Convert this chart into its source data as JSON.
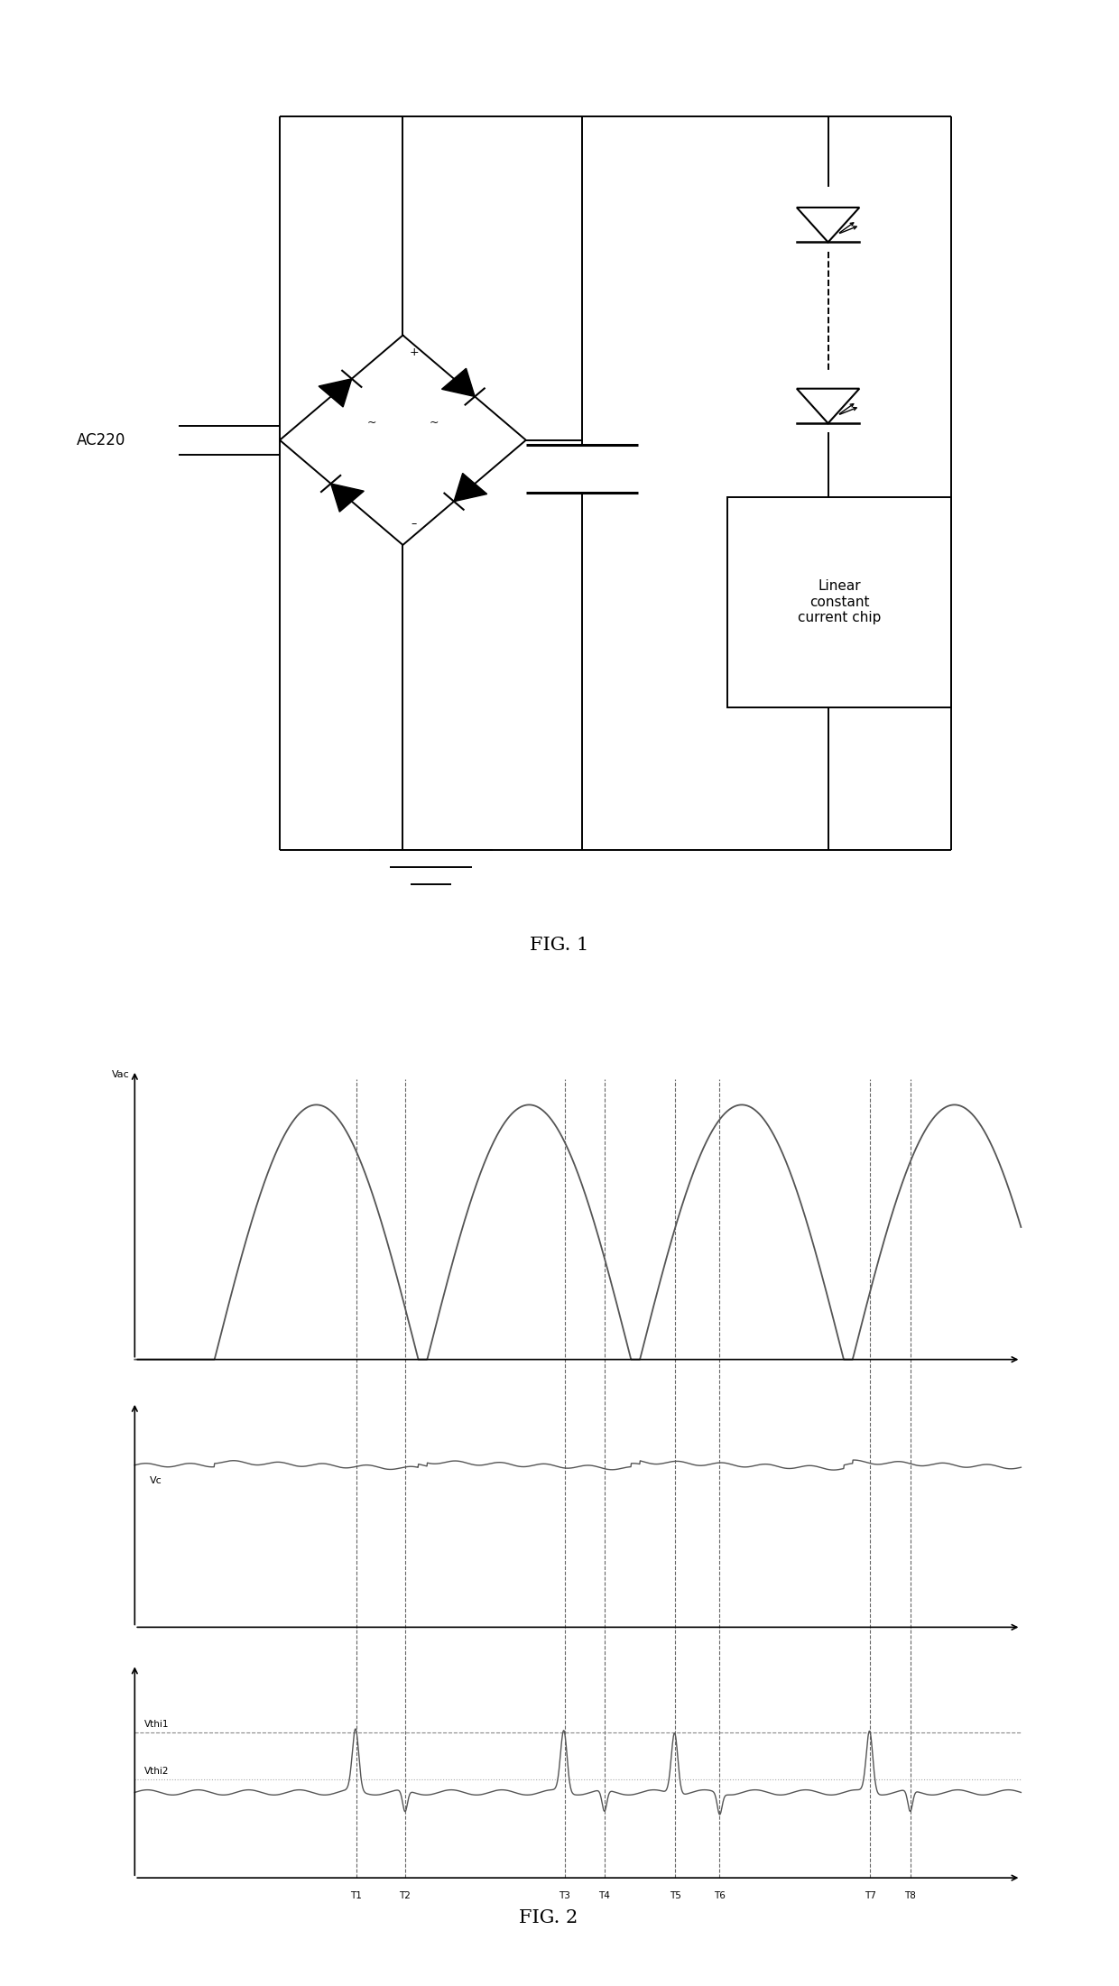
{
  "fig_width": 12.4,
  "fig_height": 22.01,
  "bg_color": "#ffffff",
  "fig1_title": "FIG. 1",
  "fig2_title": "FIG. 2",
  "circuit": {
    "chip_label": "Linear\nconstant\ncurrent chip"
  },
  "waveform": {
    "time_labels": [
      "T1",
      "T2",
      "T3",
      "T4",
      "T5",
      "T6",
      "T7",
      "T8"
    ]
  }
}
